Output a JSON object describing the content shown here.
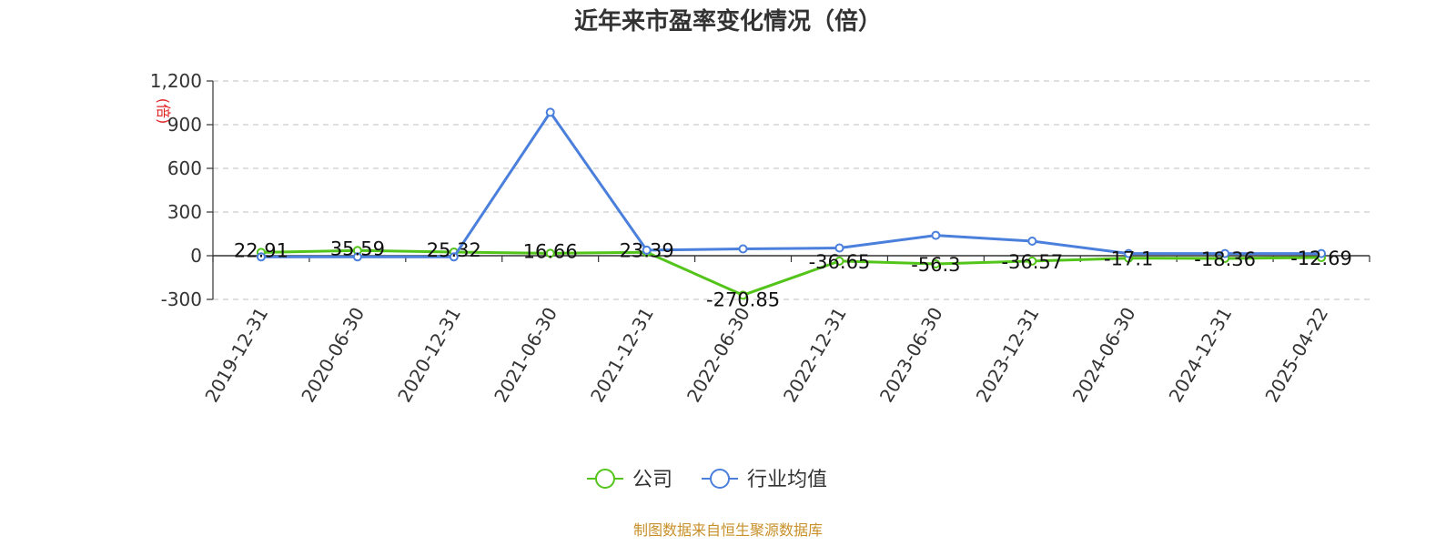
{
  "chart_data": {
    "type": "line",
    "title": "近年来市盈率变化情况（倍）",
    "ylabel": "(倍)",
    "ylim": [
      -300,
      1200
    ],
    "yticks": [
      -300,
      0,
      300,
      600,
      900,
      1200
    ],
    "ytick_labels": [
      "-300",
      "0",
      "300",
      "600",
      "900",
      "1,200"
    ],
    "categories": [
      "2019-12-31",
      "2020-06-30",
      "2020-12-31",
      "2021-06-30",
      "2021-12-31",
      "2022-06-30",
      "2022-12-31",
      "2023-06-30",
      "2023-12-31",
      "2024-06-30",
      "2024-12-31",
      "2025-04-22"
    ],
    "grid": true,
    "legend_position": "bottom-center",
    "series": [
      {
        "name": "公司",
        "color": "#52c41a",
        "values": [
          22.91,
          35.59,
          25.32,
          16.66,
          23.39,
          -270.85,
          -36.65,
          -56.3,
          -36.57,
          -17.1,
          -18.36,
          -12.69
        ],
        "labels": [
          "22.91",
          "35.59",
          "25.32",
          "16.66",
          "23.39",
          "-270.85",
          "-36.65",
          "-56.3",
          "-36.57",
          "-17.1",
          "-18.36",
          "-12.69"
        ]
      },
      {
        "name": "行业均值",
        "color": "#4a7fdc",
        "values": [
          -8,
          -8,
          -8,
          985,
          38,
          47,
          53,
          140,
          100,
          15,
          15,
          15
        ]
      }
    ],
    "source": "制图数据来自恒生聚源数据库"
  }
}
